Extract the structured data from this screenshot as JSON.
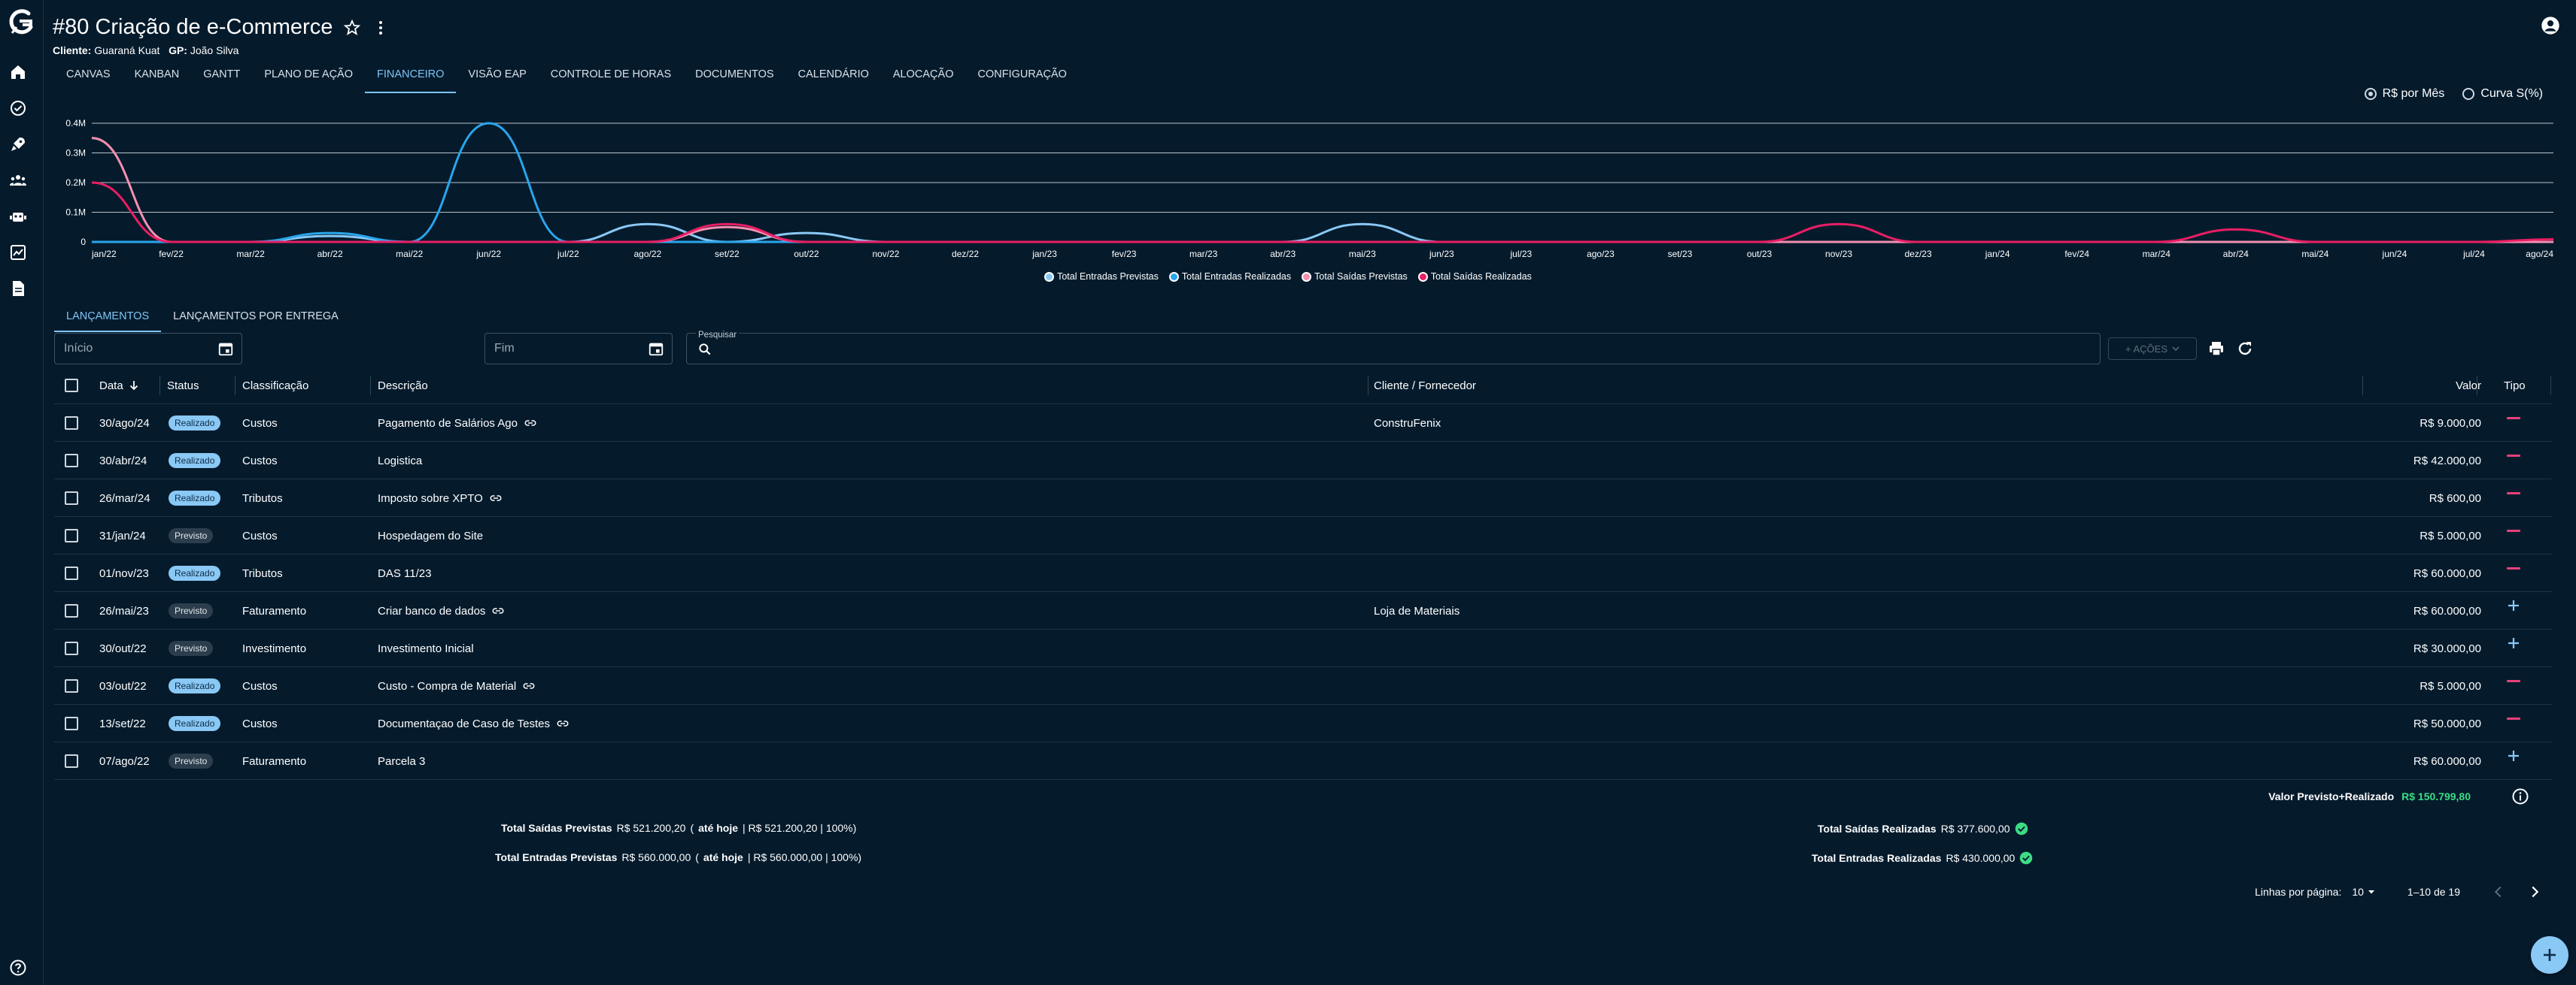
{
  "header": {
    "title": "#80 Criação de e-Commerce",
    "client_label": "Cliente:",
    "client_value": "Guaraná Kuat",
    "gp_label": "GP:",
    "gp_value": "João Silva"
  },
  "tabs": [
    "CANVAS",
    "KANBAN",
    "GANTT",
    "PLANO DE AÇÃO",
    "FINANCEIRO",
    "VISÃO EAP",
    "CONTROLE DE HORAS",
    "DOCUMENTOS",
    "CALENDÁRIO",
    "ALOCAÇÃO",
    "CONFIGURAÇÃO"
  ],
  "active_tab": "FINANCEIRO",
  "view_toggle": {
    "options": [
      "R$ por Mês",
      "Curva S(%)"
    ],
    "selected": "R$ por Mês"
  },
  "chart_data": {
    "type": "line",
    "x": [
      "jan/22",
      "fev/22",
      "mar/22",
      "abr/22",
      "mai/22",
      "jun/22",
      "jul/22",
      "ago/22",
      "set/22",
      "out/22",
      "nov/22",
      "dez/22",
      "jan/23",
      "fev/23",
      "mar/23",
      "abr/23",
      "mai/23",
      "jun/23",
      "jul/23",
      "ago/23",
      "set/23",
      "out/23",
      "nov/23",
      "dez/23",
      "jan/24",
      "fev/24",
      "mar/24",
      "abr/24",
      "mai/24",
      "jun/24",
      "jul/24",
      "ago/24"
    ],
    "y_ticks": [
      "0",
      "0.1M",
      "0.2M",
      "0.3M",
      "0.4M"
    ],
    "ylim": [
      0,
      400000
    ],
    "series": [
      {
        "name": "Total Entradas Previstas",
        "color": "#8ac8f5",
        "values": [
          0,
          0,
          0,
          20000,
          0,
          0,
          0,
          60000,
          0,
          30000,
          0,
          0,
          0,
          0,
          0,
          0,
          60000,
          0,
          0,
          0,
          0,
          0,
          0,
          0,
          0,
          0,
          0,
          0,
          0,
          0,
          0,
          0
        ]
      },
      {
        "name": "Total Entradas Realizadas",
        "color": "#2aa5ec",
        "values": [
          0,
          0,
          0,
          30000,
          0,
          400000,
          0,
          0,
          0,
          0,
          0,
          0,
          0,
          0,
          0,
          0,
          0,
          0,
          0,
          0,
          0,
          0,
          0,
          0,
          0,
          0,
          0,
          0,
          0,
          0,
          0,
          0
        ]
      },
      {
        "name": "Total Saídas Previstas",
        "color": "#f48fb1",
        "values": [
          350000,
          0,
          0,
          0,
          0,
          0,
          0,
          0,
          50000,
          0,
          0,
          0,
          0,
          0,
          0,
          0,
          0,
          0,
          0,
          0,
          0,
          0,
          0,
          0,
          0,
          0,
          0,
          0,
          0,
          0,
          0,
          0
        ]
      },
      {
        "name": "Total Saídas Realizadas",
        "color": "#e91e63",
        "values": [
          200000,
          0,
          0,
          0,
          0,
          0,
          0,
          0,
          60000,
          0,
          0,
          0,
          0,
          0,
          0,
          0,
          0,
          0,
          0,
          0,
          0,
          0,
          60000,
          0,
          0,
          0,
          0,
          42000,
          0,
          0,
          0,
          9000
        ]
      }
    ],
    "grid": true,
    "legend": "bottom-center"
  },
  "subtabs": [
    "LANÇAMENTOS",
    "LANÇAMENTOS POR ENTREGA"
  ],
  "filters": {
    "start_placeholder": "Início",
    "end_placeholder": "Fim",
    "search_label": "Pesquisar",
    "actions_label": "+ AÇÕES"
  },
  "table": {
    "columns": [
      "Data",
      "Status",
      "Classificação",
      "Descrição",
      "Cliente / Fornecedor",
      "Valor",
      "Tipo"
    ],
    "rows": [
      {
        "data": "30/ago/24",
        "status": "Realizado",
        "classificacao": "Custos",
        "descricao": "Pagamento de Salários Ago",
        "link": true,
        "cliente": "ConstruFenix",
        "valor": "R$ 9.000,00",
        "tipo": "minus"
      },
      {
        "data": "30/abr/24",
        "status": "Realizado",
        "classificacao": "Custos",
        "descricao": "Logistica",
        "link": false,
        "cliente": "",
        "valor": "R$ 42.000,00",
        "tipo": "minus"
      },
      {
        "data": "26/mar/24",
        "status": "Realizado",
        "classificacao": "Tributos",
        "descricao": "Imposto sobre XPTO",
        "link": true,
        "cliente": "",
        "valor": "R$ 600,00",
        "tipo": "minus"
      },
      {
        "data": "31/jan/24",
        "status": "Previsto",
        "classificacao": "Custos",
        "descricao": "Hospedagem do Site",
        "link": false,
        "cliente": "",
        "valor": "R$ 5.000,00",
        "tipo": "minus"
      },
      {
        "data": "01/nov/23",
        "status": "Realizado",
        "classificacao": "Tributos",
        "descricao": "DAS 11/23",
        "link": false,
        "cliente": "",
        "valor": "R$ 60.000,00",
        "tipo": "minus"
      },
      {
        "data": "26/mai/23",
        "status": "Previsto",
        "classificacao": "Faturamento",
        "descricao": "Criar banco de dados",
        "link": true,
        "cliente": "Loja de Materiais",
        "valor": "R$ 60.000,00",
        "tipo": "plus"
      },
      {
        "data": "30/out/22",
        "status": "Previsto",
        "classificacao": "Investimento",
        "descricao": "Investimento Inicial",
        "link": false,
        "cliente": "",
        "valor": "R$ 30.000,00",
        "tipo": "plus"
      },
      {
        "data": "03/out/22",
        "status": "Realizado",
        "classificacao": "Custos",
        "descricao": "Custo - Compra de Material",
        "link": true,
        "cliente": "",
        "valor": "R$ 5.000,00",
        "tipo": "minus"
      },
      {
        "data": "13/set/22",
        "status": "Realizado",
        "classificacao": "Custos",
        "descricao": "Documentaçao de Caso de Testes",
        "link": true,
        "cliente": "",
        "valor": "R$ 50.000,00",
        "tipo": "minus"
      },
      {
        "data": "07/ago/22",
        "status": "Previsto",
        "classificacao": "Faturamento",
        "descricao": "Parcela 3",
        "link": false,
        "cliente": "",
        "valor": "R$ 60.000,00",
        "tipo": "plus"
      }
    ]
  },
  "summary": {
    "total_label": "Valor Previsto+Realizado",
    "total_value": "R$ 150.799,80",
    "saidas_previstas_label": "Total Saídas Previstas",
    "saidas_previstas_value": "R$ 521.200,20",
    "saidas_previstas_detail_open": "(",
    "saidas_previstas_hoje": "até hoje",
    "saidas_previstas_detail": "| R$ 521.200,20 | 100%)",
    "entradas_previstas_label": "Total Entradas Previstas",
    "entradas_previstas_value": "R$ 560.000,00",
    "entradas_previstas_detail_open": "(",
    "entradas_previstas_hoje": "até hoje",
    "entradas_previstas_detail": "| R$ 560.000,00 | 100%)",
    "saidas_realizadas_label": "Total Saídas Realizadas",
    "saidas_realizadas_value": "R$ 377.600,00",
    "entradas_realizadas_label": "Total Entradas Realizadas",
    "entradas_realizadas_value": "R$ 430.000,00"
  },
  "pagination": {
    "rows_label": "Linhas por página:",
    "rows_value": "10",
    "range": "1–10 de 19"
  },
  "colors": {
    "background": "#051b2c",
    "accent": "#7fc4f5",
    "minus": "#e8407a",
    "green": "#3ddc84"
  }
}
